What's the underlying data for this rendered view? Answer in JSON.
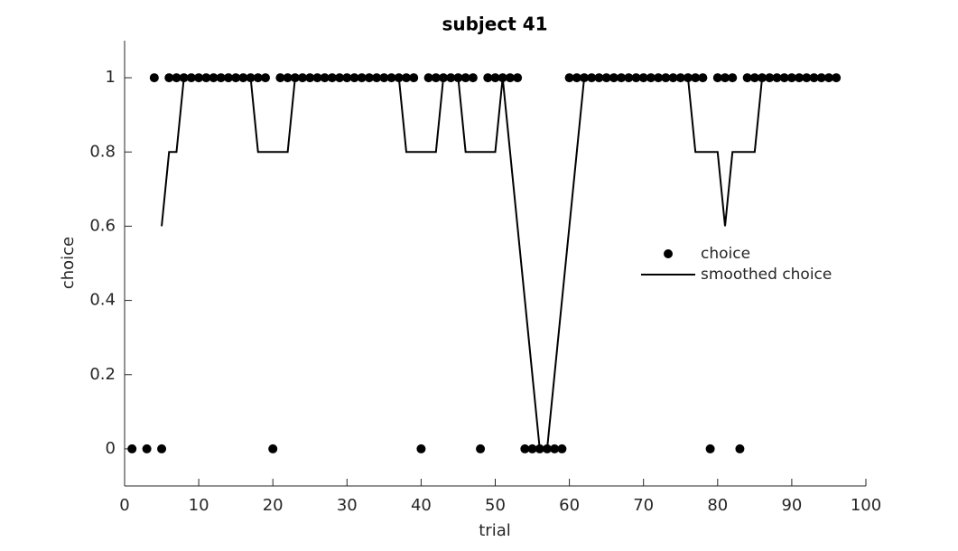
{
  "chart_data": {
    "type": "combo",
    "title": "subject 41",
    "x_label": "trial",
    "y_label": "choice",
    "x": [
      1,
      2,
      3,
      4,
      5,
      6,
      7,
      8,
      9,
      10,
      11,
      12,
      13,
      14,
      15,
      16,
      17,
      18,
      19,
      20,
      21,
      22,
      23,
      24,
      25,
      26,
      27,
      28,
      29,
      30,
      31,
      32,
      33,
      34,
      35,
      36,
      37,
      38,
      39,
      40,
      41,
      42,
      43,
      44,
      45,
      46,
      47,
      48,
      49,
      50,
      51,
      52,
      53,
      54,
      55,
      56,
      57,
      58,
      59,
      60,
      61,
      62,
      63,
      64,
      65,
      66,
      67,
      68,
      69,
      70,
      71,
      72,
      73,
      74,
      75,
      76,
      77,
      78,
      79,
      80,
      81,
      82,
      83,
      84,
      85,
      86,
      87,
      88,
      89,
      90,
      91,
      92,
      93,
      94,
      95,
      96
    ],
    "series": [
      {
        "name": "choice",
        "kind": "scatter",
        "color": "#000000",
        "values": [
          0,
          null,
          0,
          1,
          0,
          1,
          1,
          1,
          1,
          1,
          1,
          1,
          1,
          1,
          1,
          1,
          1,
          1,
          1,
          0,
          1,
          1,
          1,
          1,
          1,
          1,
          1,
          1,
          1,
          1,
          1,
          1,
          1,
          1,
          1,
          1,
          1,
          1,
          1,
          0,
          1,
          1,
          1,
          1,
          1,
          1,
          1,
          0,
          1,
          1,
          1,
          1,
          1,
          0,
          0,
          0,
          0,
          0,
          0,
          1,
          1,
          1,
          1,
          1,
          1,
          1,
          1,
          1,
          1,
          1,
          1,
          1,
          1,
          1,
          1,
          1,
          1,
          1,
          0,
          1,
          1,
          1,
          0,
          1,
          1,
          1,
          1,
          1,
          1,
          1,
          1,
          1,
          1,
          1,
          1,
          1
        ]
      },
      {
        "name": "smoothed choice",
        "kind": "line",
        "color": "#000000",
        "values": [
          null,
          null,
          null,
          null,
          0.6,
          0.8,
          0.8,
          1,
          1,
          1,
          1,
          1,
          1,
          1,
          1,
          1,
          1,
          0.8,
          0.8,
          0.8,
          0.8,
          0.8,
          1,
          1,
          1,
          1,
          1,
          1,
          1,
          1,
          1,
          1,
          1,
          1,
          1,
          1,
          1,
          0.8,
          0.8,
          0.8,
          0.8,
          0.8,
          1,
          1,
          1,
          0.8,
          0.8,
          0.8,
          0.8,
          0.8,
          1,
          0.8,
          0.6,
          0.4,
          0.2,
          0,
          0,
          0.2,
          0.4,
          0.6,
          0.8,
          1,
          1,
          1,
          1,
          1,
          1,
          1,
          1,
          1,
          1,
          1,
          1,
          1,
          1,
          1,
          0.8,
          0.8,
          0.8,
          0.8,
          0.6,
          0.8,
          0.8,
          0.8,
          0.8,
          1,
          1,
          1,
          1,
          1,
          1,
          1,
          1,
          1,
          null,
          null
        ]
      }
    ],
    "xlim": [
      0,
      100
    ],
    "xticks": [
      0,
      10,
      20,
      30,
      40,
      50,
      60,
      70,
      80,
      90,
      100
    ],
    "ylim": [
      -0.1,
      1.1
    ],
    "yticks": [
      0,
      0.2,
      0.4,
      0.6,
      0.8,
      1
    ],
    "grid": false,
    "legend": "east"
  }
}
